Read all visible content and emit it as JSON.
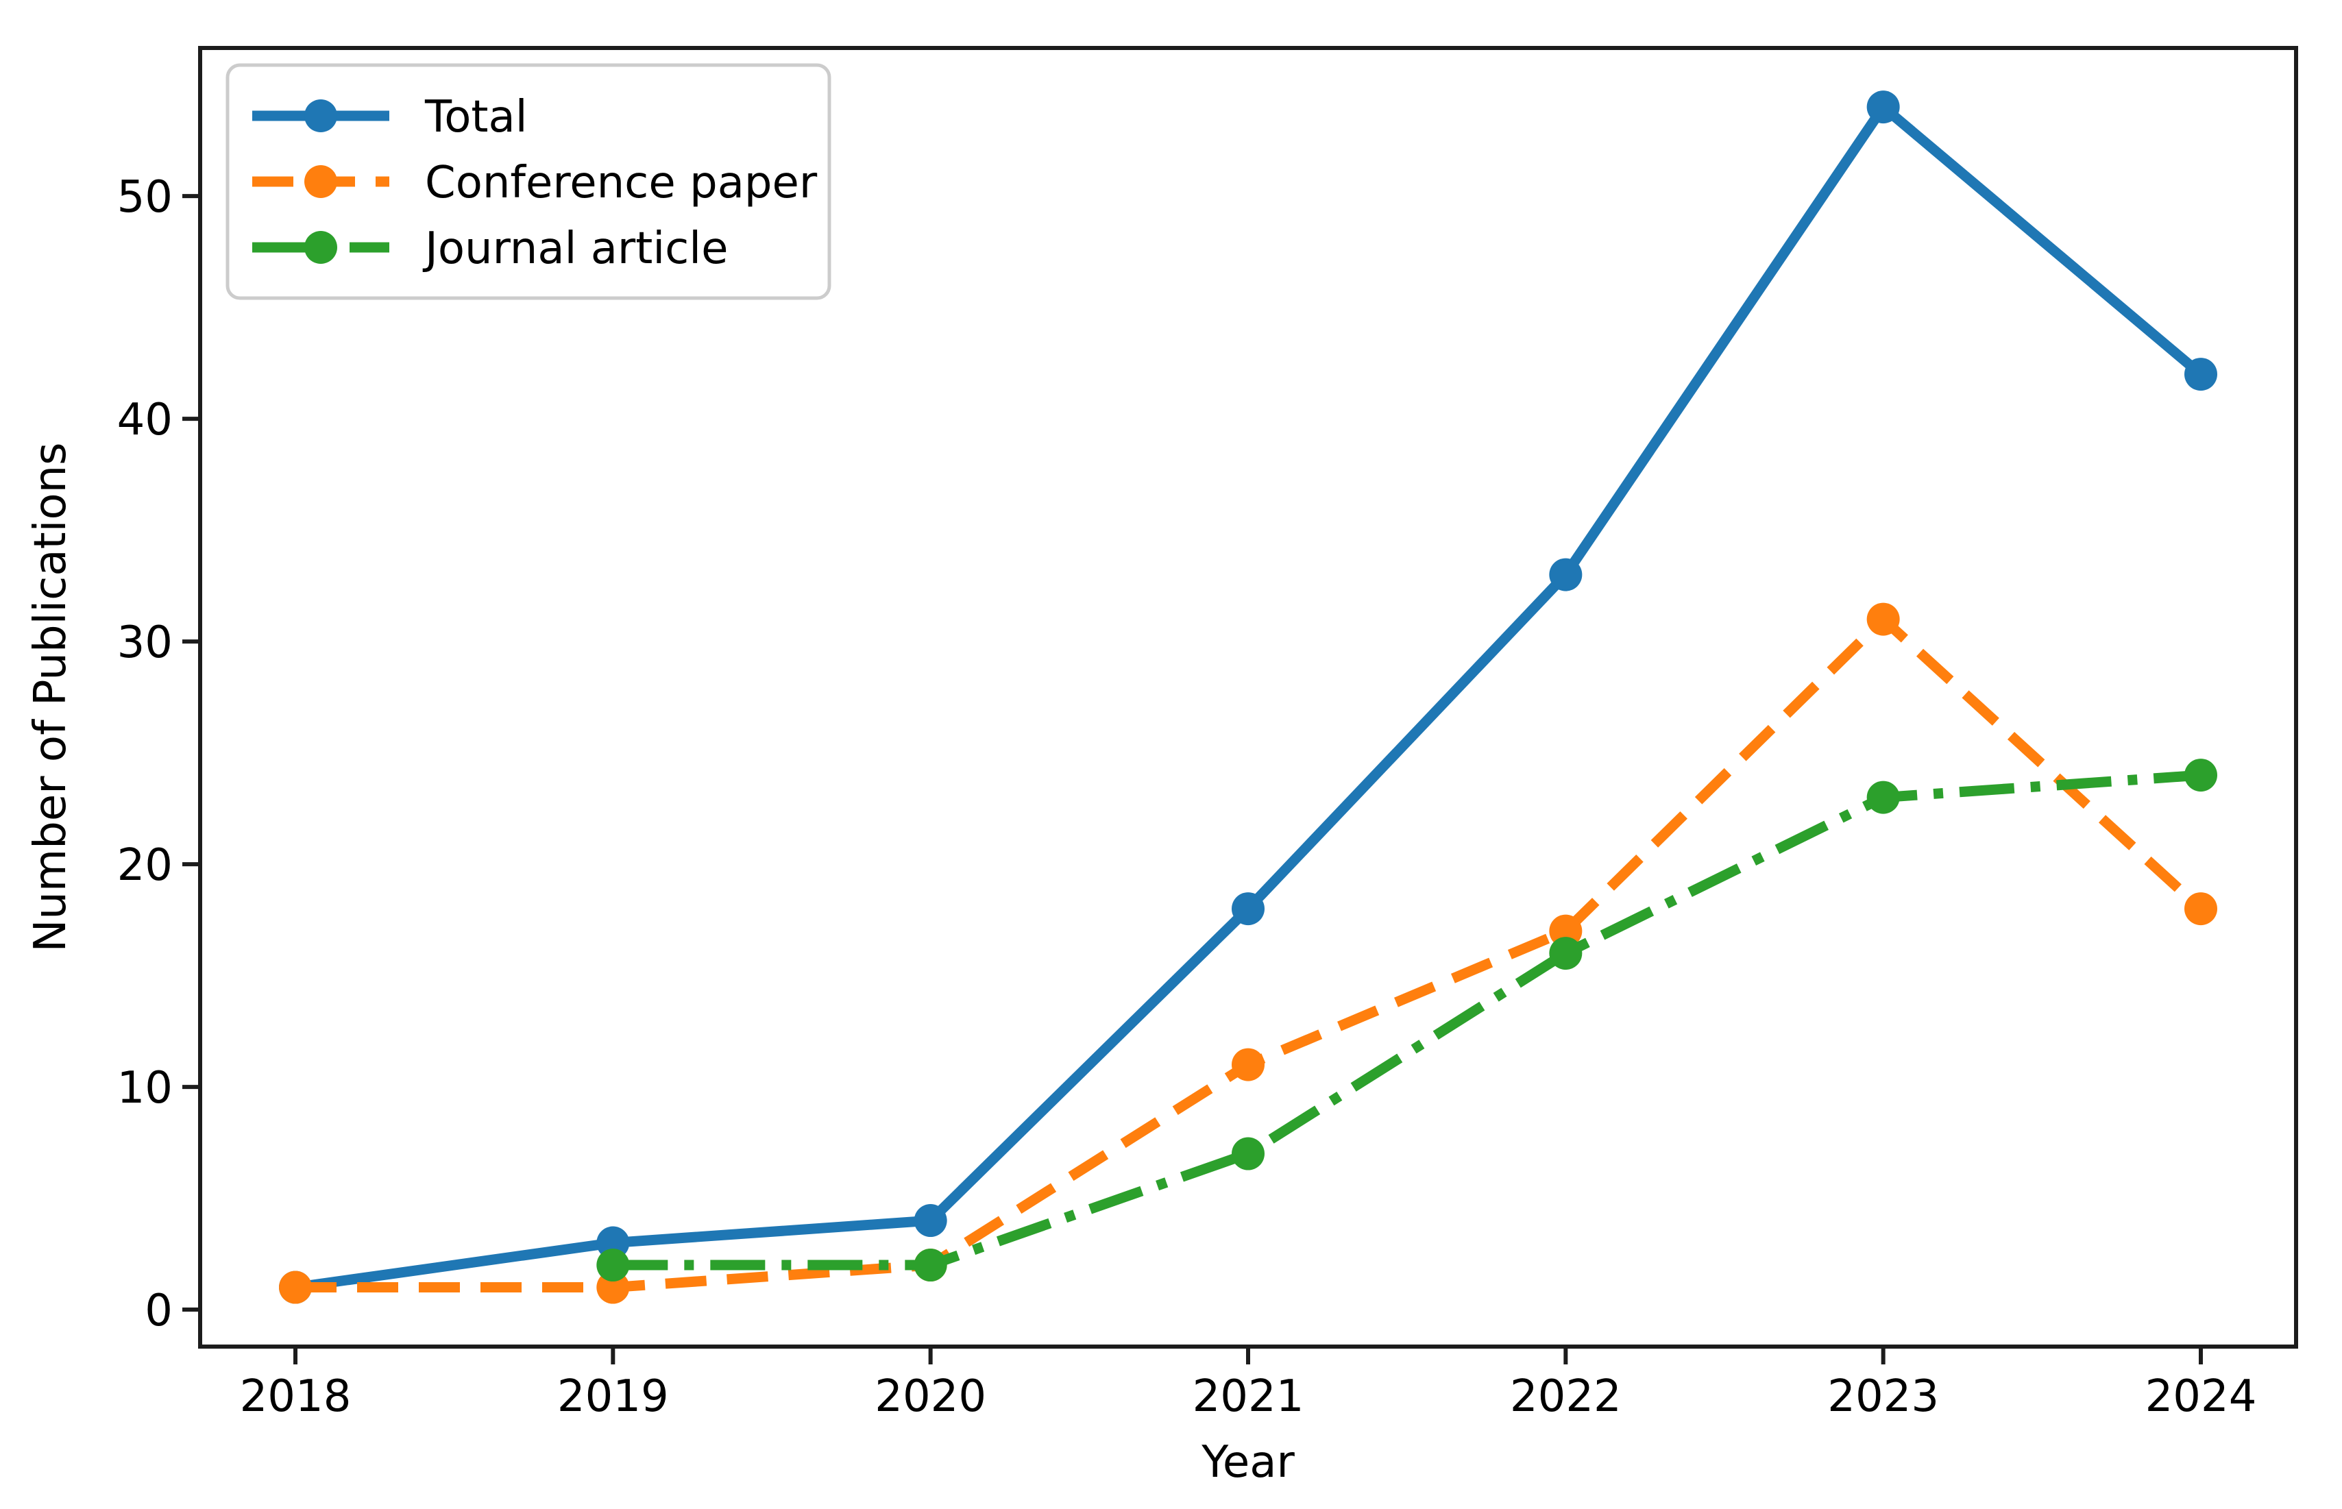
{
  "figure": {
    "background": "#ffffff",
    "frame_color": "#1c1c1c",
    "text_color": "#000000",
    "legend_border_color": "#cccccc",
    "legend_background": "#ffffff"
  },
  "chart_data": {
    "type": "line",
    "title": "",
    "xlabel": "Year",
    "ylabel": "Number of Publications",
    "x": [
      2018,
      2019,
      2020,
      2021,
      2022,
      2023,
      2024
    ],
    "xticks": [
      2018,
      2019,
      2020,
      2021,
      2022,
      2023,
      2024
    ],
    "yticks": [
      0,
      10,
      20,
      30,
      40,
      50
    ],
    "xlim": [
      2017.7,
      2024.3
    ],
    "ylim": [
      -1.66,
      56.65
    ],
    "grid": false,
    "legend": {
      "position": "upper left"
    },
    "series": [
      {
        "name": "Total",
        "color": "#1f77b4",
        "linestyle": "solid",
        "marker": "circle",
        "values": [
          1,
          3,
          4,
          18,
          33,
          54,
          42
        ]
      },
      {
        "name": "Conference paper",
        "color": "#ff7f0e",
        "linestyle": "dashed",
        "marker": "circle",
        "values": [
          1,
          1,
          2,
          11,
          17,
          31,
          18
        ]
      },
      {
        "name": "Journal article",
        "color": "#2ca02c",
        "linestyle": "dashdot",
        "marker": "circle",
        "values": [
          null,
          2,
          2,
          7,
          16,
          23,
          24
        ]
      }
    ]
  }
}
